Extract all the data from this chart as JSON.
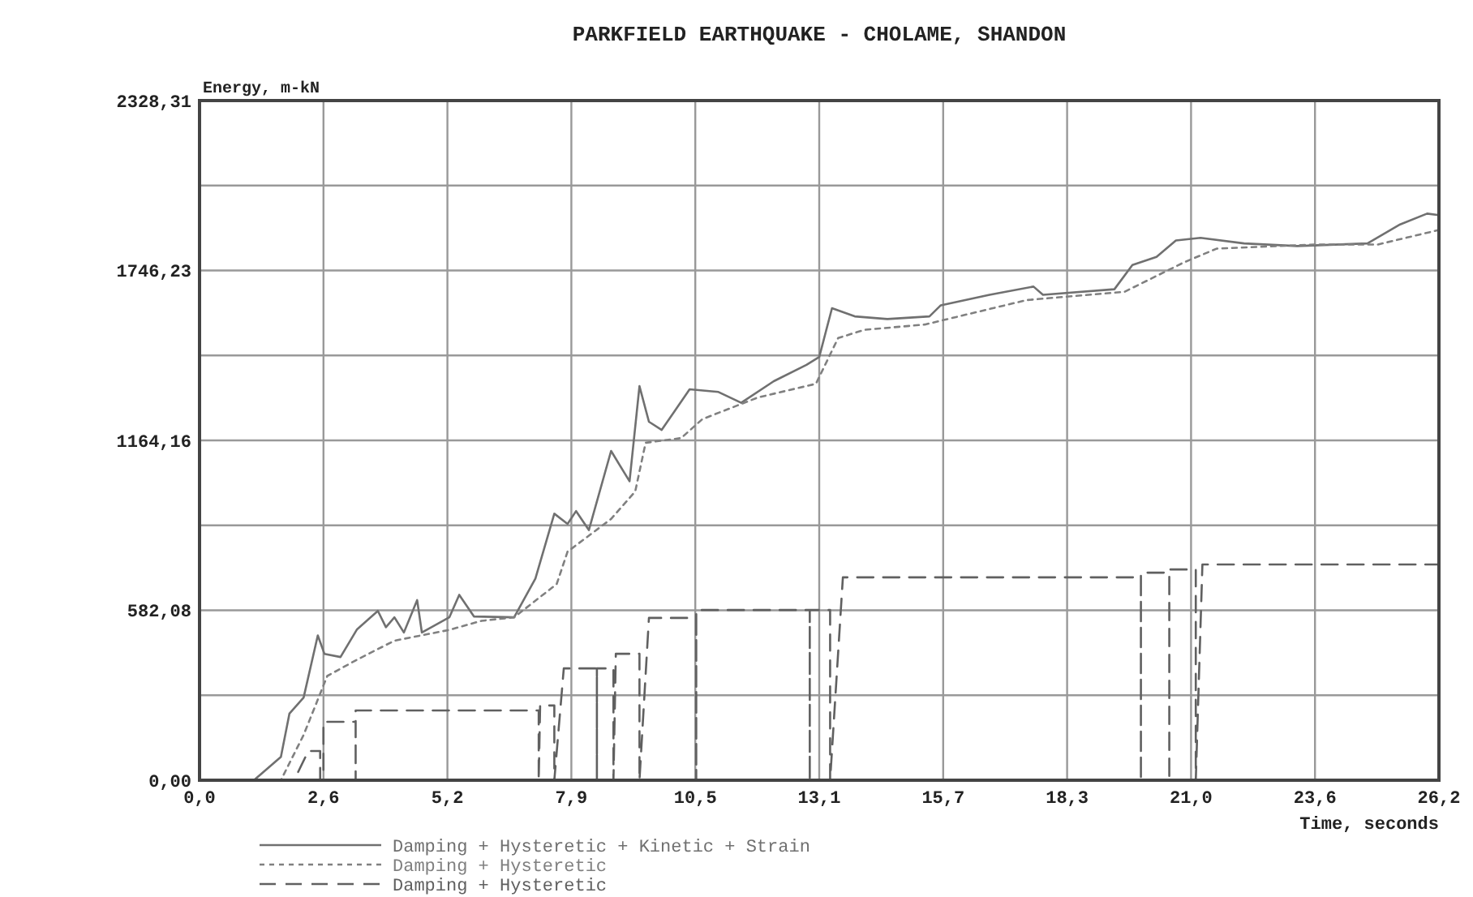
{
  "chart_data": {
    "type": "line",
    "title": "PARKFIELD EARTHQUAKE - CHOLAME, SHANDON",
    "xlabel": "Time, seconds",
    "ylabel": "Energy, m-kN",
    "xlim": [
      0,
      26.2
    ],
    "ylim": [
      0,
      2328.31
    ],
    "xticks": [
      {
        "value": 0,
        "label": "0,0"
      },
      {
        "value": 2.62,
        "label": "2,6"
      },
      {
        "value": 5.24,
        "label": "5,2"
      },
      {
        "value": 7.86,
        "label": "7,9"
      },
      {
        "value": 10.48,
        "label": "10,5"
      },
      {
        "value": 13.1,
        "label": "13,1"
      },
      {
        "value": 15.72,
        "label": "15,7"
      },
      {
        "value": 18.34,
        "label": "18,3"
      },
      {
        "value": 20.96,
        "label": "21,0"
      },
      {
        "value": 23.58,
        "label": "23,6"
      },
      {
        "value": 26.2,
        "label": "26,2"
      }
    ],
    "yticks": [
      {
        "value": 0,
        "label": "0,00"
      },
      {
        "value": 291.04,
        "label": null
      },
      {
        "value": 582.08,
        "label": "582,08"
      },
      {
        "value": 873.12,
        "label": null
      },
      {
        "value": 1164.16,
        "label": "1164,16"
      },
      {
        "value": 1455.19,
        "label": null
      },
      {
        "value": 1746.23,
        "label": "1746,23"
      },
      {
        "value": 2037.27,
        "label": null
      },
      {
        "value": 2328.31,
        "label": "2328,31"
      }
    ],
    "grid": true,
    "legend": "bottom",
    "series": [
      {
        "name": "Damping + Hysteretic + Kinetic + Strain",
        "color": "#707070",
        "line_style": "solid",
        "x": [
          0,
          1.15,
          1.72,
          1.9,
          2.2,
          2.5,
          2.64,
          2.98,
          3.33,
          3.77,
          3.94,
          4.12,
          4.32,
          4.6,
          4.7,
          5.28,
          5.49,
          5.8,
          6.65,
          7.1,
          7.5,
          7.78,
          7.96,
          8.23,
          8.7,
          9.09,
          9.3,
          9.5,
          9.77,
          10.36,
          10.97,
          11.45,
          12.14,
          12.83,
          13.1,
          13.37,
          13.85,
          14.54,
          15.43,
          15.67,
          16.7,
          17.63,
          17.83,
          19.34,
          19.72,
          20.23,
          20.64,
          21.16,
          22.08,
          23.2,
          24.69,
          25.38,
          25.95,
          26.2
        ],
        "values": [
          0,
          0,
          80,
          228,
          283,
          496,
          433,
          422,
          517,
          580,
          524,
          558,
          506,
          617,
          506,
          558,
          635,
          561,
          558,
          691,
          913,
          878,
          922,
          857,
          1128,
          1024,
          1350,
          1228,
          1200,
          1339,
          1330,
          1293,
          1367,
          1423,
          1450,
          1617,
          1589,
          1580,
          1589,
          1627,
          1663,
          1691,
          1663,
          1682,
          1765,
          1793,
          1849,
          1858,
          1839,
          1830,
          1839,
          1904,
          1941,
          1936
        ]
      },
      {
        "name": "Damping + Hysteretic",
        "color": "#808080",
        "line_style": "dotted",
        "x": [
          0,
          1.72,
          2.2,
          2.7,
          3.33,
          4.12,
          5.28,
          5.96,
          6.65,
          7.55,
          7.78,
          8.7,
          9.21,
          9.43,
          10.18,
          10.63,
          11.8,
          13.03,
          13.5,
          14.06,
          15.33,
          17.49,
          19.55,
          20.81,
          21.5,
          23.56,
          24.9,
          26.2
        ],
        "values": [
          0,
          0,
          155,
          357,
          413,
          478,
          515,
          546,
          558,
          672,
          783,
          895,
          989,
          1156,
          1172,
          1237,
          1311,
          1358,
          1515,
          1543,
          1561,
          1645,
          1673,
          1774,
          1821,
          1835,
          1835,
          1885
        ]
      },
      {
        "name": "Damping + Hysteretic",
        "color": "#606060",
        "line_style": "dashed",
        "x": [
          0,
          2.0,
          2.3,
          2.55,
          2.55,
          2.62,
          2.62,
          3.3,
          3.3,
          3.3,
          7.17,
          7.17,
          7.2,
          7.5,
          7.5,
          7.7,
          8.4,
          8.4,
          8.4,
          8.75,
          8.75,
          8.8,
          9.3,
          9.3,
          9.5,
          10.5,
          10.5,
          10.5,
          12.9,
          12.9,
          12.9,
          13.33,
          13.33,
          13.6,
          19.9,
          19.9,
          19.9,
          20.5,
          20.5,
          20.5,
          21.06,
          21.06,
          21.2,
          26.2
        ],
        "values": [
          0,
          0,
          100,
          100,
          0,
          0,
          200,
          200,
          0,
          239,
          239,
          0,
          256,
          256,
          0,
          383,
          383,
          0,
          383,
          383,
          0,
          433,
          433,
          0,
          556,
          556,
          0,
          583,
          583,
          0,
          583,
          583,
          0,
          695,
          695,
          0,
          711,
          711,
          0,
          722,
          722,
          0,
          739,
          739
        ]
      }
    ]
  }
}
